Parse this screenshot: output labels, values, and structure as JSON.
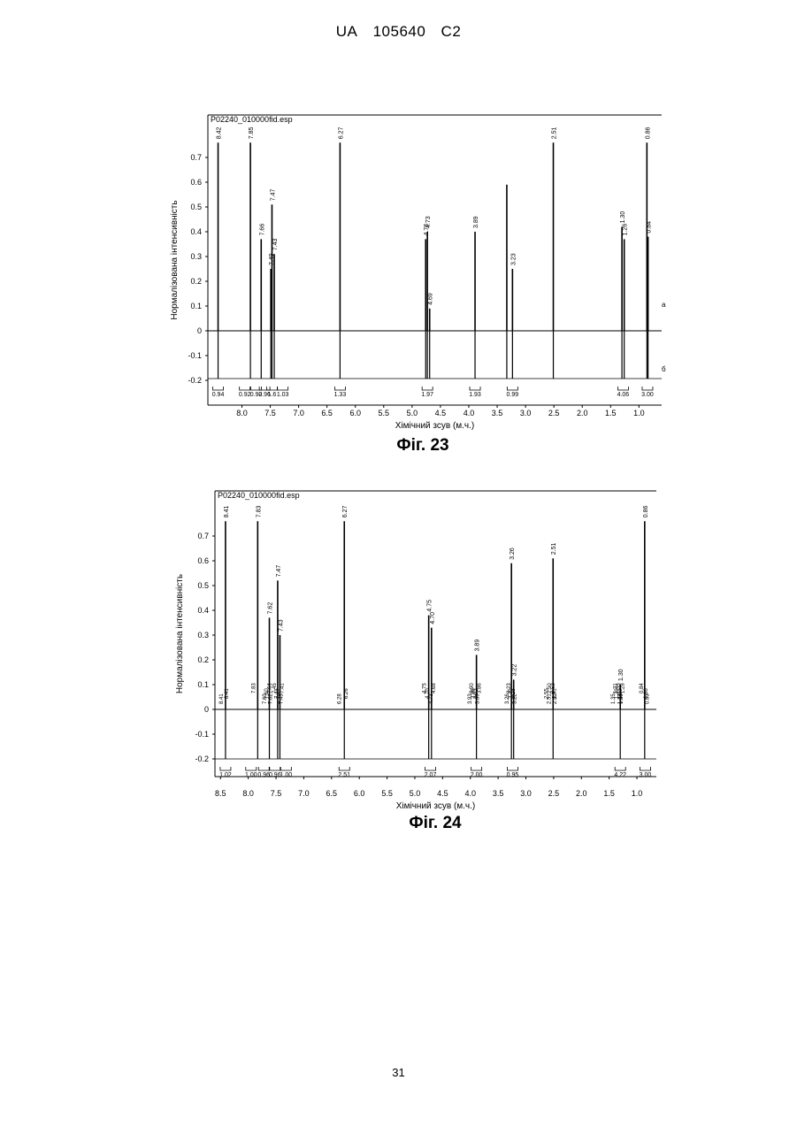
{
  "header": {
    "country": "UA",
    "number": "105640",
    "kind": "C2"
  },
  "page_number": "31",
  "colors": {
    "ink": "#000000",
    "background": "#ffffff"
  },
  "chart_data": [
    {
      "type": "line",
      "caption": "Фіг. 23",
      "file_label": "P02240_010000fid.esp",
      "xlabel": "Хімічний зсув (м.ч.)",
      "ylabel": "Нормалізована інтенсивність",
      "xlim": [
        8.6,
        0.6
      ],
      "ylim": [
        -0.22,
        0.8
      ],
      "x_ticks": [
        "8.0",
        "7.5",
        "7.0",
        "6.5",
        "6.0",
        "5.5",
        "5.0",
        "4.5",
        "4.0",
        "3.5",
        "3.0",
        "2.5",
        "2.0",
        "1.5",
        "1.0"
      ],
      "y_ticks": [
        "0.7",
        "0.6",
        "0.5",
        "0.4",
        "0.3",
        "0.2",
        "0.1",
        "0",
        "-0.1",
        "-0.2"
      ],
      "peaks": [
        {
          "x": 8.42,
          "y": 0.76,
          "label": "8.42"
        },
        {
          "x": 7.85,
          "y": 0.76,
          "label": "7.85"
        },
        {
          "x": 7.66,
          "y": 0.37,
          "label": "7.66"
        },
        {
          "x": 7.49,
          "y": 0.25,
          "label": "7.49"
        },
        {
          "x": 7.47,
          "y": 0.51,
          "label": "7.47"
        },
        {
          "x": 7.43,
          "y": 0.31,
          "label": "7.43"
        },
        {
          "x": 6.27,
          "y": 0.76,
          "label": "6.27"
        },
        {
          "x": 4.76,
          "y": 0.37,
          "label": "4.76"
        },
        {
          "x": 4.73,
          "y": 0.4,
          "label": "4.73"
        },
        {
          "x": 4.69,
          "y": 0.09,
          "label": "4.69"
        },
        {
          "x": 3.89,
          "y": 0.4,
          "label": "3.89"
        },
        {
          "x": 3.33,
          "y": 0.59,
          "label": ""
        },
        {
          "x": 3.23,
          "y": 0.25,
          "label": "3.23"
        },
        {
          "x": 2.51,
          "y": 0.76,
          "label": "2.51"
        },
        {
          "x": 1.3,
          "y": 0.42,
          "label": "1.30"
        },
        {
          "x": 1.26,
          "y": 0.37,
          "label": "1.26"
        },
        {
          "x": 0.86,
          "y": 0.76,
          "label": "0.86"
        },
        {
          "x": 0.84,
          "y": 0.38,
          "label": "0.84"
        }
      ],
      "integrals": [
        {
          "x": 8.42,
          "value": "0.94"
        },
        {
          "x": 7.95,
          "value": "0.92"
        },
        {
          "x": 7.75,
          "value": "0.92"
        },
        {
          "x": 7.6,
          "value": "0.96"
        },
        {
          "x": 7.47,
          "value": "1.6"
        },
        {
          "x": 7.28,
          "value": "1.03"
        },
        {
          "x": 6.27,
          "value": "1.33"
        },
        {
          "x": 4.73,
          "value": "1.97"
        },
        {
          "x": 3.89,
          "value": "1.93"
        },
        {
          "x": 3.23,
          "value": "0.99"
        },
        {
          "x": 1.28,
          "value": "4.06"
        },
        {
          "x": 0.85,
          "value": "3.00"
        }
      ],
      "side_marks": [
        "a",
        "б"
      ]
    },
    {
      "type": "line",
      "caption": "Фіг. 24",
      "file_label": "P02240_010000fid.esp",
      "xlabel": "Хімічний зсув (м.ч.)",
      "ylabel": "Нормалізована інтенсивність",
      "xlim": [
        8.6,
        0.65
      ],
      "ylim": [
        -0.22,
        0.8
      ],
      "x_ticks": [
        "8.5",
        "8.0",
        "7.5",
        "7.0",
        "6.5",
        "6.0",
        "5.5",
        "5.0",
        "4.5",
        "4.0",
        "3.5",
        "3.0",
        "2.5",
        "2.0",
        "1.5",
        "1.0"
      ],
      "y_ticks": [
        "0.7",
        "0.6",
        "0.5",
        "0.4",
        "0.3",
        "0.2",
        "0.1",
        "0",
        "-0.1",
        "-0.2"
      ],
      "peaks": [
        {
          "x": 8.41,
          "y": 0.76,
          "label": "8.41"
        },
        {
          "x": 7.83,
          "y": 0.76,
          "label": "7.83"
        },
        {
          "x": 7.62,
          "y": 0.37,
          "label": "7.62"
        },
        {
          "x": 7.47,
          "y": 0.52,
          "label": "7.47"
        },
        {
          "x": 7.43,
          "y": 0.3,
          "label": "7.43"
        },
        {
          "x": 6.27,
          "y": 0.76,
          "label": "6.27"
        },
        {
          "x": 4.75,
          "y": 0.38,
          "label": "4.75"
        },
        {
          "x": 4.7,
          "y": 0.33,
          "label": "4.70"
        },
        {
          "x": 3.89,
          "y": 0.22,
          "label": "3.89"
        },
        {
          "x": 3.26,
          "y": 0.59,
          "label": "3.26"
        },
        {
          "x": 3.22,
          "y": 0.12,
          "label": "3.22"
        },
        {
          "x": 2.51,
          "y": 0.61,
          "label": "2.51"
        },
        {
          "x": 1.3,
          "y": 0.1,
          "label": "1.30"
        },
        {
          "x": 0.86,
          "y": 0.76,
          "label": "0.86"
        }
      ],
      "peak_labels": [
        "8.41",
        "8.41",
        "7.83",
        "7.62",
        "7.60",
        "7.64",
        "7.63",
        "7.47",
        "7.45",
        "7.43",
        "7.41",
        "7.41",
        "6.28",
        "6.26",
        "4.75",
        "4.73",
        "4.70",
        "4.68",
        "3.93",
        "3.92",
        "3.90",
        "3.89",
        "3.88",
        "3.86",
        "3.26",
        "3.25",
        "3.23",
        "3.22",
        "3.21",
        "2.53",
        "2.51",
        "2.51",
        "2.50",
        "2.50",
        "2.55",
        "1.35",
        "1.35",
        "1.32",
        "1.31",
        "1.30",
        "1.29",
        "1.28",
        "1.23",
        "0.86",
        "0.84",
        "0.83"
      ],
      "integrals": [
        {
          "x": 8.41,
          "value": "1.02"
        },
        {
          "x": 7.95,
          "value": "1.00"
        },
        {
          "x": 7.72,
          "value": "0.96"
        },
        {
          "x": 7.52,
          "value": "0.96"
        },
        {
          "x": 7.32,
          "value": "1.00"
        },
        {
          "x": 6.27,
          "value": "2.51"
        },
        {
          "x": 4.72,
          "value": "2.07"
        },
        {
          "x": 3.89,
          "value": "2.00"
        },
        {
          "x": 3.24,
          "value": "0.95"
        },
        {
          "x": 1.3,
          "value": "4.22"
        },
        {
          "x": 0.85,
          "value": "3.00"
        }
      ]
    }
  ]
}
